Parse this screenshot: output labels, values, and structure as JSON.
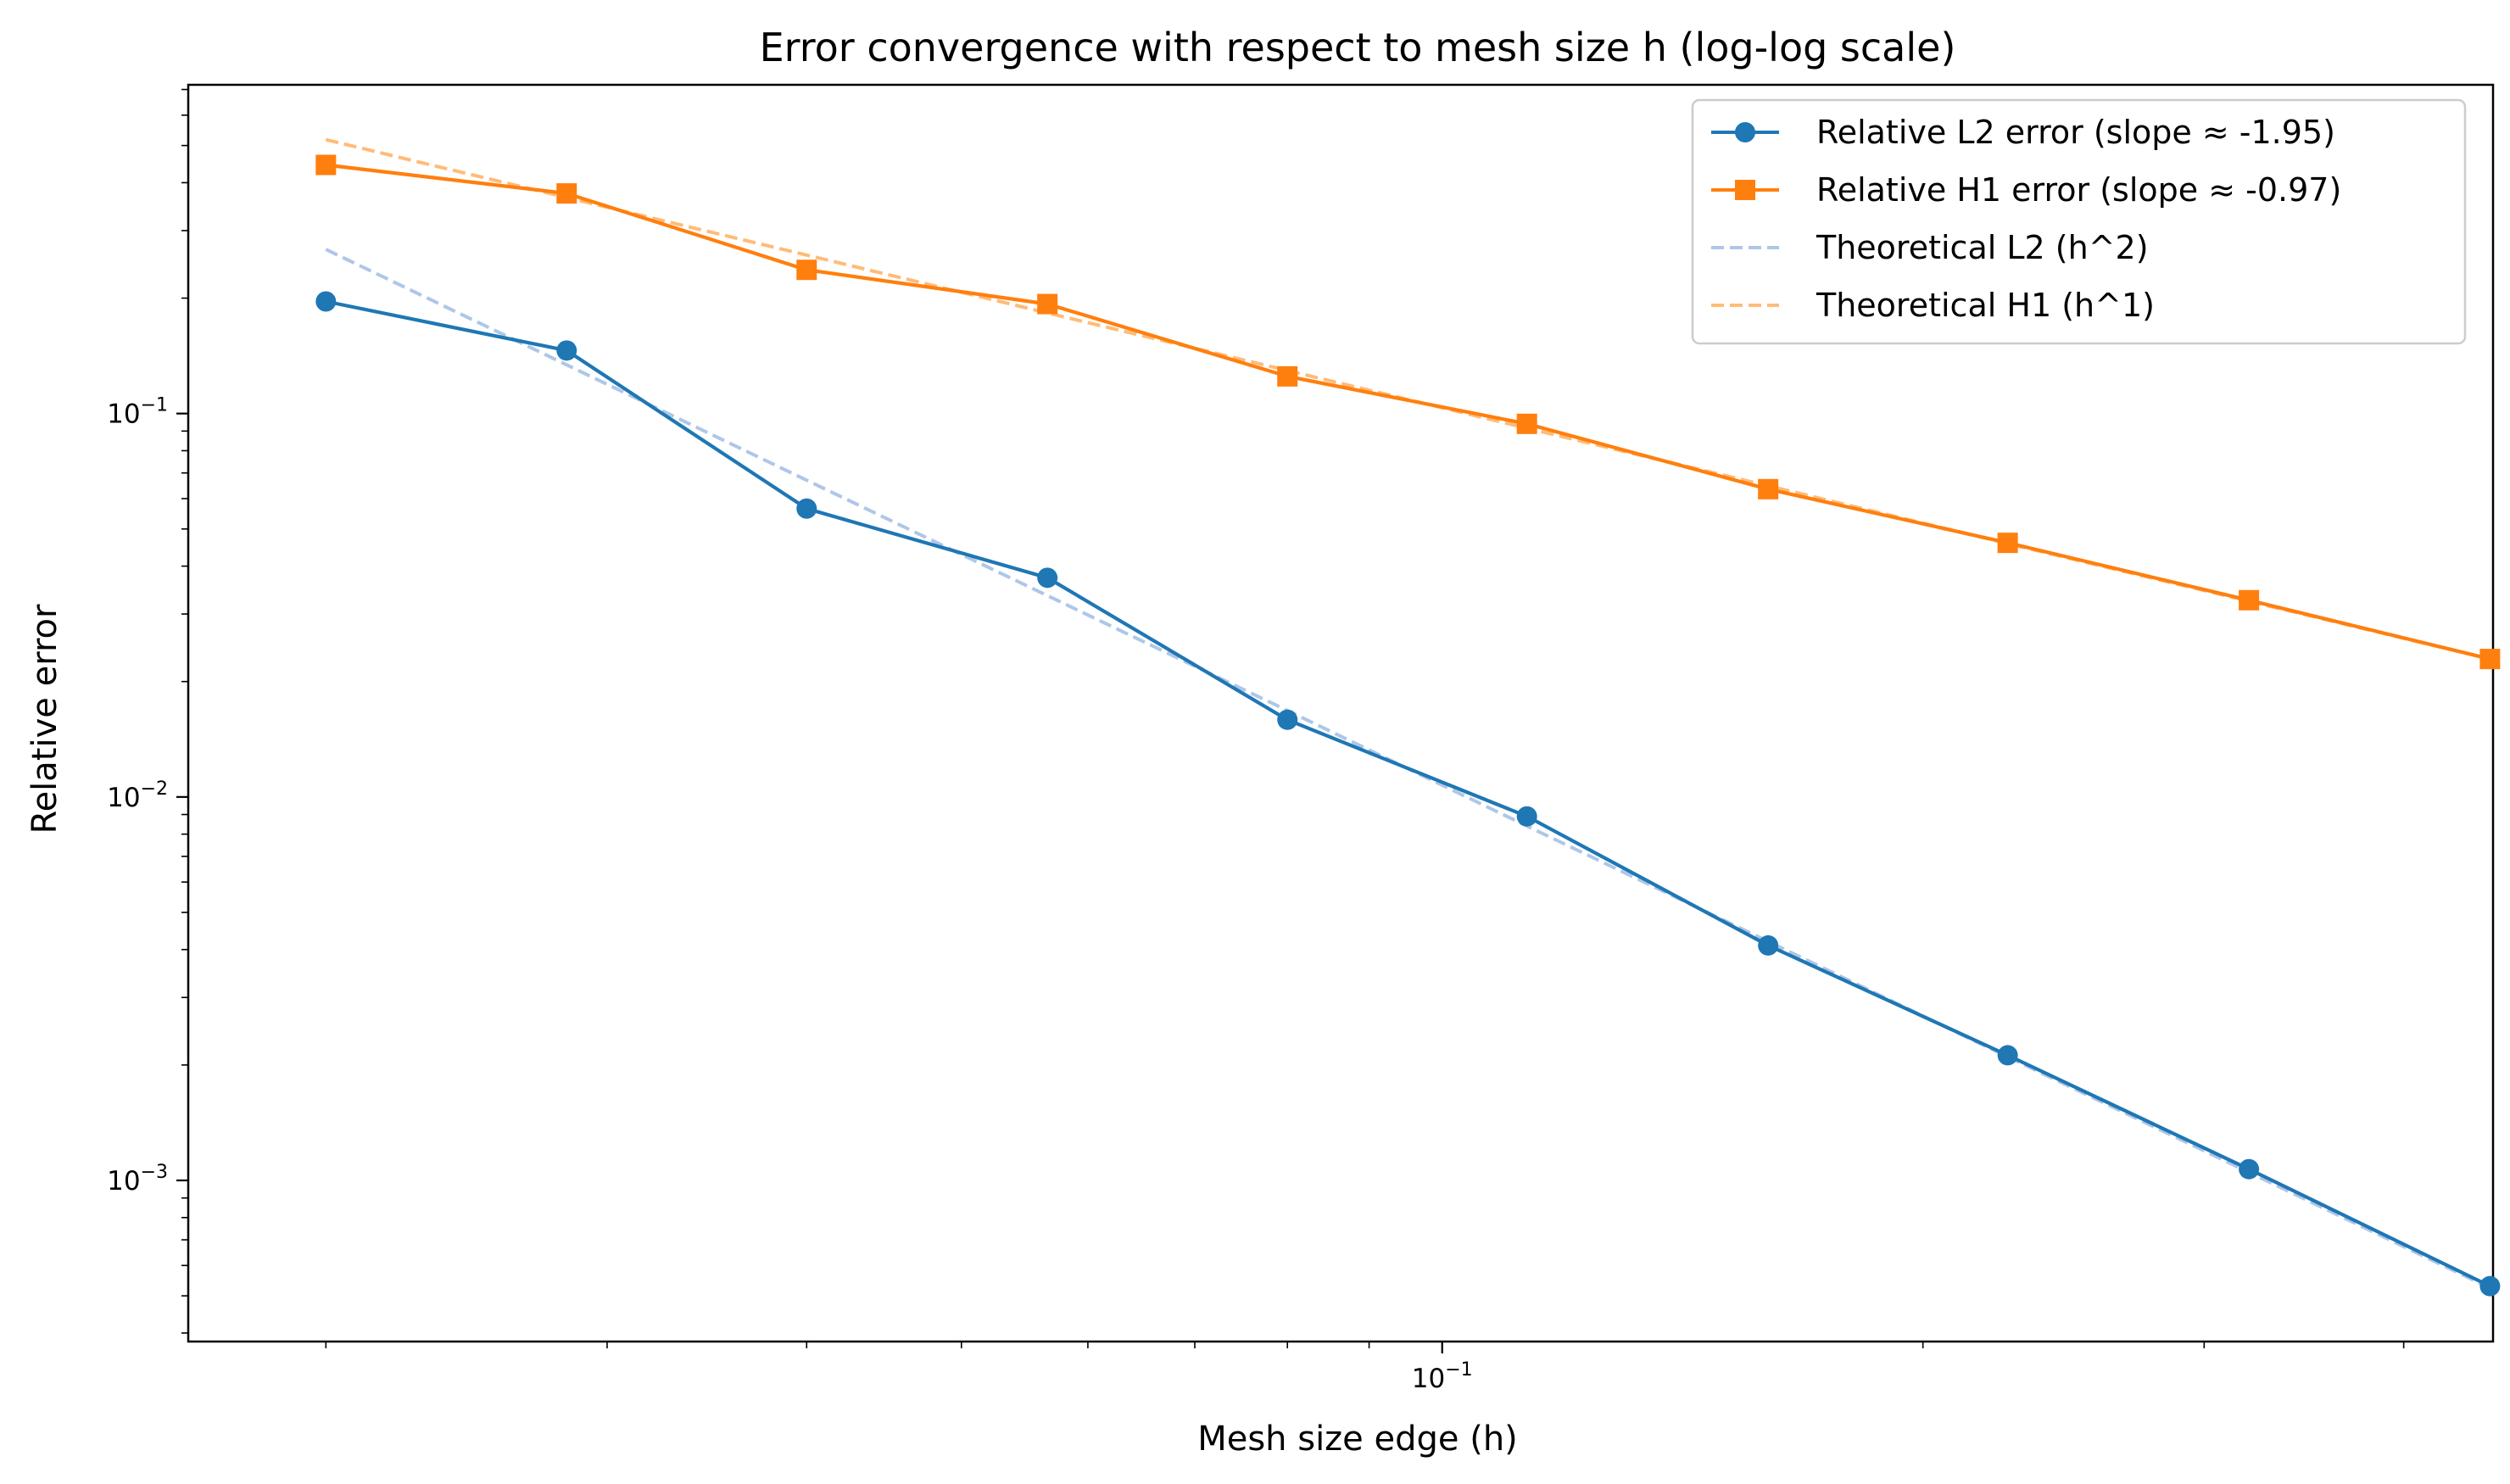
{
  "chart_data": {
    "type": "line",
    "title": "Error convergence with respect to mesh size h (log-log scale)",
    "xlabel": "Mesh size edge (h)",
    "ylabel": "Relative error",
    "xscale": "log",
    "yscale": "log",
    "xlim": [
      0.0164,
      0.455
    ],
    "ylim": [
      0.00038,
      0.72
    ],
    "x_ticks": [
      {
        "value": 0.1,
        "base": "10",
        "exp": "−1"
      }
    ],
    "y_ticks": [
      {
        "value": 0.001,
        "base": "10",
        "exp": "−3"
      },
      {
        "value": 0.01,
        "base": "10",
        "exp": "−2"
      },
      {
        "value": 0.1,
        "base": "10",
        "exp": "−1"
      }
    ],
    "grid": false,
    "legend_position": "upper-right",
    "x": [
      0.02,
      0.0283,
      0.04,
      0.0566,
      0.08,
      0.113,
      0.16,
      0.226,
      0.32,
      0.453
    ],
    "series": [
      {
        "name": "Relative L2 error (slope ≈ -1.95)",
        "color": "#1f77b4",
        "style": "solid",
        "marker": "circle",
        "values": [
          0.196,
          0.146,
          0.0565,
          0.0373,
          0.0159,
          0.0089,
          0.0041,
          0.00212,
          0.00107,
          0.00053
        ]
      },
      {
        "name": "Relative H1 error (slope ≈ -0.97)",
        "color": "#ff7f0e",
        "style": "solid",
        "marker": "square",
        "values": [
          0.445,
          0.375,
          0.237,
          0.193,
          0.125,
          0.094,
          0.0635,
          0.046,
          0.0326,
          0.0229
        ]
      },
      {
        "name": "Theoretical L2 (h^2)",
        "color": "#aec7e8",
        "style": "dashed",
        "marker": "none",
        "values": [
          0.268,
          0.134,
          0.067,
          0.0335,
          0.0168,
          0.0084,
          0.0042,
          0.0021,
          0.00105,
          0.000524
        ]
      },
      {
        "name": "Theoretical H1 (h^1)",
        "color": "#ffbb78",
        "style": "dashed",
        "marker": "none",
        "values": [
          0.518,
          0.366,
          0.259,
          0.183,
          0.1295,
          0.0916,
          0.0648,
          0.0458,
          0.0324,
          0.0229
        ]
      }
    ]
  }
}
